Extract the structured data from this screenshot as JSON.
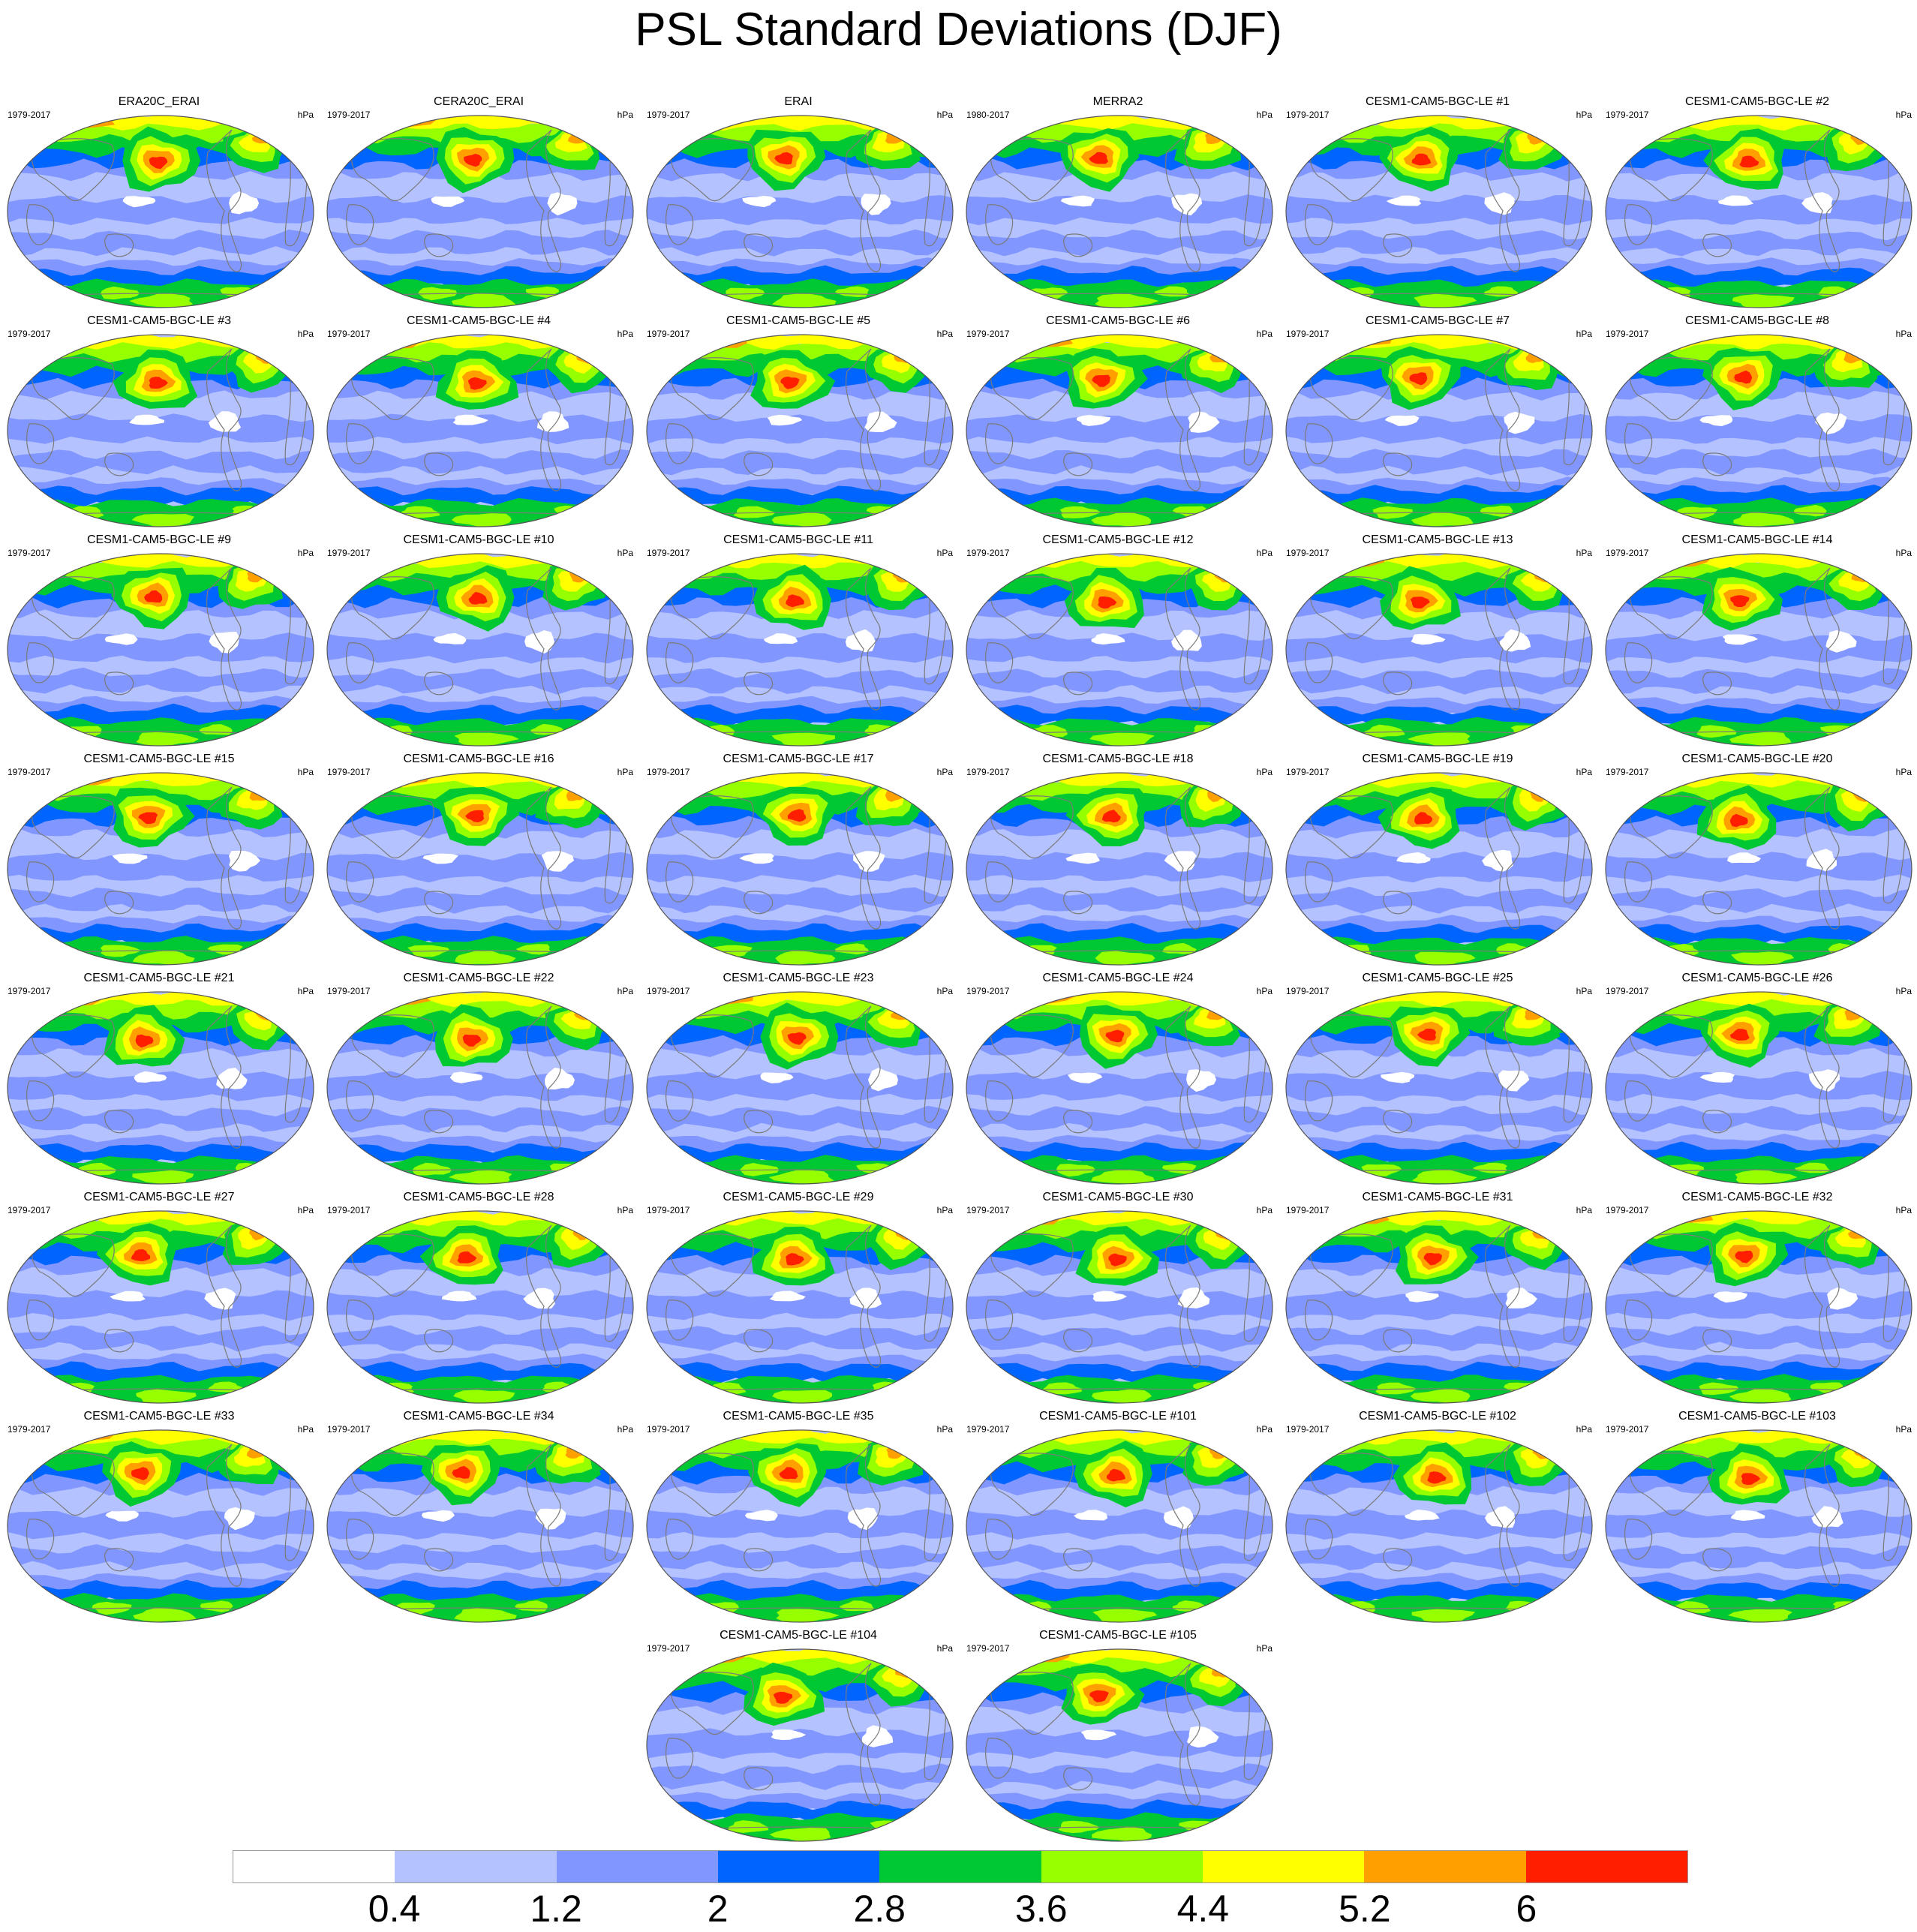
{
  "title": "PSL Standard Deviations (DJF)",
  "units": "hPa",
  "colorbar": {
    "colors": [
      "#ffffff",
      "#b4c3ff",
      "#8296ff",
      "#0064ff",
      "#00c832",
      "#96ff00",
      "#ffff00",
      "#ffa000",
      "#ff1e00"
    ],
    "levels": [
      "0.4",
      "1.2",
      "2",
      "2.8",
      "3.6",
      "4.4",
      "5.2",
      "6"
    ]
  },
  "panels": [
    {
      "name": "ERA20C_ERAI",
      "years": "1979-2017"
    },
    {
      "name": "CERA20C_ERAI",
      "years": "1979-2017"
    },
    {
      "name": "ERAI",
      "years": "1979-2017"
    },
    {
      "name": "MERRA2",
      "years": "1980-2017"
    },
    {
      "name": "CESM1-CAM5-BGC-LE #1",
      "years": "1979-2017"
    },
    {
      "name": "CESM1-CAM5-BGC-LE #2",
      "years": "1979-2017"
    },
    {
      "name": "CESM1-CAM5-BGC-LE #3",
      "years": "1979-2017"
    },
    {
      "name": "CESM1-CAM5-BGC-LE #4",
      "years": "1979-2017"
    },
    {
      "name": "CESM1-CAM5-BGC-LE #5",
      "years": "1979-2017"
    },
    {
      "name": "CESM1-CAM5-BGC-LE #6",
      "years": "1979-2017"
    },
    {
      "name": "CESM1-CAM5-BGC-LE #7",
      "years": "1979-2017"
    },
    {
      "name": "CESM1-CAM5-BGC-LE #8",
      "years": "1979-2017"
    },
    {
      "name": "CESM1-CAM5-BGC-LE #9",
      "years": "1979-2017"
    },
    {
      "name": "CESM1-CAM5-BGC-LE #10",
      "years": "1979-2017"
    },
    {
      "name": "CESM1-CAM5-BGC-LE #11",
      "years": "1979-2017"
    },
    {
      "name": "CESM1-CAM5-BGC-LE #12",
      "years": "1979-2017"
    },
    {
      "name": "CESM1-CAM5-BGC-LE #13",
      "years": "1979-2017"
    },
    {
      "name": "CESM1-CAM5-BGC-LE #14",
      "years": "1979-2017"
    },
    {
      "name": "CESM1-CAM5-BGC-LE #15",
      "years": "1979-2017"
    },
    {
      "name": "CESM1-CAM5-BGC-LE #16",
      "years": "1979-2017"
    },
    {
      "name": "CESM1-CAM5-BGC-LE #17",
      "years": "1979-2017"
    },
    {
      "name": "CESM1-CAM5-BGC-LE #18",
      "years": "1979-2017"
    },
    {
      "name": "CESM1-CAM5-BGC-LE #19",
      "years": "1979-2017"
    },
    {
      "name": "CESM1-CAM5-BGC-LE #20",
      "years": "1979-2017"
    },
    {
      "name": "CESM1-CAM5-BGC-LE #21",
      "years": "1979-2017"
    },
    {
      "name": "CESM1-CAM5-BGC-LE #22",
      "years": "1979-2017"
    },
    {
      "name": "CESM1-CAM5-BGC-LE #23",
      "years": "1979-2017"
    },
    {
      "name": "CESM1-CAM5-BGC-LE #24",
      "years": "1979-2017"
    },
    {
      "name": "CESM1-CAM5-BGC-LE #25",
      "years": "1979-2017"
    },
    {
      "name": "CESM1-CAM5-BGC-LE #26",
      "years": "1979-2017"
    },
    {
      "name": "CESM1-CAM5-BGC-LE #27",
      "years": "1979-2017"
    },
    {
      "name": "CESM1-CAM5-BGC-LE #28",
      "years": "1979-2017"
    },
    {
      "name": "CESM1-CAM5-BGC-LE #29",
      "years": "1979-2017"
    },
    {
      "name": "CESM1-CAM5-BGC-LE #30",
      "years": "1979-2017"
    },
    {
      "name": "CESM1-CAM5-BGC-LE #31",
      "years": "1979-2017"
    },
    {
      "name": "CESM1-CAM5-BGC-LE #32",
      "years": "1979-2017"
    },
    {
      "name": "CESM1-CAM5-BGC-LE #33",
      "years": "1979-2017"
    },
    {
      "name": "CESM1-CAM5-BGC-LE #34",
      "years": "1979-2017"
    },
    {
      "name": "CESM1-CAM5-BGC-LE #35",
      "years": "1979-2017"
    },
    {
      "name": "CESM1-CAM5-BGC-LE #101",
      "years": "1979-2017"
    },
    {
      "name": "CESM1-CAM5-BGC-LE #102",
      "years": "1979-2017"
    },
    {
      "name": "CESM1-CAM5-BGC-LE #103",
      "years": "1979-2017"
    },
    {
      "name": "CESM1-CAM5-BGC-LE #104",
      "years": "1979-2017"
    },
    {
      "name": "CESM1-CAM5-BGC-LE #105",
      "years": "1979-2017"
    }
  ]
}
